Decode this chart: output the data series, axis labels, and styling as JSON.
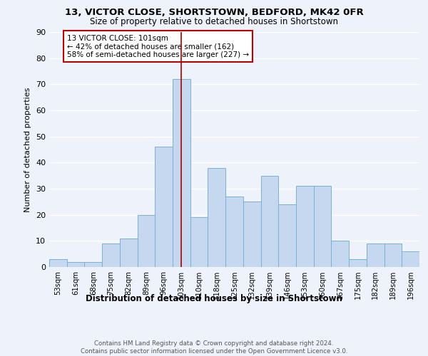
{
  "title1": "13, VICTOR CLOSE, SHORTSTOWN, BEDFORD, MK42 0FR",
  "title2": "Size of property relative to detached houses in Shortstown",
  "xlabel": "Distribution of detached houses by size in Shortstown",
  "ylabel": "Number of detached properties",
  "categories": [
    "53sqm",
    "61sqm",
    "68sqm",
    "75sqm",
    "82sqm",
    "89sqm",
    "96sqm",
    "103sqm",
    "110sqm",
    "118sqm",
    "125sqm",
    "132sqm",
    "139sqm",
    "146sqm",
    "153sqm",
    "160sqm",
    "167sqm",
    "175sqm",
    "182sqm",
    "189sqm",
    "196sqm"
  ],
  "values": [
    3,
    2,
    2,
    9,
    11,
    20,
    46,
    72,
    19,
    38,
    27,
    25,
    35,
    24,
    31,
    31,
    10,
    3,
    9,
    9,
    6
  ],
  "bar_color": "#c5d8f0",
  "bar_edge_color": "#7aafd4",
  "red_line_index": 7,
  "annotation_text": "13 VICTOR CLOSE: 101sqm\n← 42% of detached houses are smaller (162)\n58% of semi-detached houses are larger (227) →",
  "annotation_box_color": "#ffffff",
  "annotation_box_edge": "#bb0000",
  "footer": "Contains HM Land Registry data © Crown copyright and database right 2024.\nContains public sector information licensed under the Open Government Licence v3.0.",
  "ylim": [
    0,
    90
  ],
  "yticks": [
    0,
    10,
    20,
    30,
    40,
    50,
    60,
    70,
    80,
    90
  ],
  "background_color": "#eef2fb"
}
